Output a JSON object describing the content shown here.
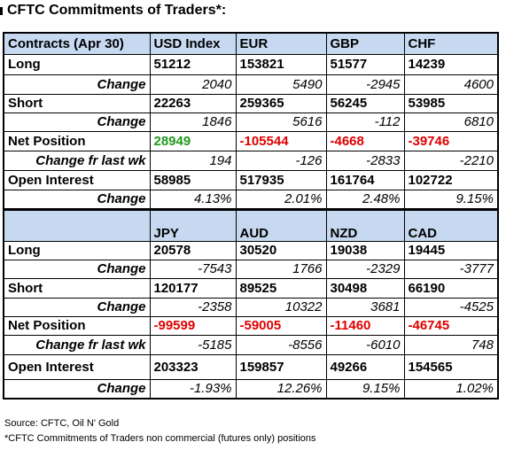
{
  "header": {
    "title": "CFTC Commitments of Traders*:"
  },
  "table": {
    "colors": {
      "header_fill": "#c6d9f0",
      "positive": "#1e9a1e",
      "negative": "#e00000"
    },
    "blocks": [
      {
        "header": [
          "Contracts (Apr 30)",
          "USD Index",
          "EUR",
          "GBP",
          "CHF"
        ],
        "rows": [
          {
            "label": "Long",
            "cells": [
              51212,
              153821,
              51577,
              14239
            ]
          },
          {
            "label": "Change",
            "cells": [
              2040,
              5490,
              -2945,
              4600
            ]
          },
          {
            "label": "Short",
            "cells": [
              22263,
              259365,
              56245,
              53985
            ]
          },
          {
            "label": "Change",
            "cells": [
              1846,
              5616,
              -112,
              6810
            ]
          },
          {
            "label": "Net Position",
            "cells": [
              28949,
              -105544,
              -4668,
              -39746
            ]
          },
          {
            "label": "Change fr last wk",
            "cells": [
              194,
              -126,
              -2833,
              -2210
            ]
          },
          {
            "label": "Open Interest",
            "cells": [
              58985,
              517935,
              161764,
              102722
            ]
          },
          {
            "label": "Change",
            "cells": [
              "4.13%",
              "2.01%",
              "2.48%",
              "9.15%"
            ]
          }
        ]
      },
      {
        "header": [
          null,
          "JPY",
          "AUD",
          "NZD",
          "CAD"
        ],
        "rows": [
          {
            "label": "Long",
            "cells": [
              20578,
              30520,
              19038,
              19445
            ]
          },
          {
            "label": "Change",
            "cells": [
              -7543,
              1766,
              -2329,
              -3777
            ]
          },
          {
            "label": "Short",
            "cells": [
              120177,
              89525,
              30498,
              66190
            ]
          },
          {
            "label": "Change",
            "cells": [
              -2358,
              10322,
              3681,
              -4525
            ]
          },
          {
            "label": "Net Position",
            "cells": [
              -99599,
              -59005,
              -11460,
              -46745
            ]
          },
          {
            "label": "Change fr last wk",
            "cells": [
              -5185,
              -8556,
              -6010,
              748
            ]
          },
          {
            "label": "Open Interest",
            "cells": [
              203323,
              159857,
              49266,
              154565
            ]
          },
          {
            "label": "Change",
            "cells": [
              "-1.93%",
              "12.26%",
              "9.15%",
              "1.02%"
            ]
          }
        ]
      }
    ]
  },
  "footer": {
    "source": "Source: CFTC, Oil N' Gold",
    "note": "*CFTC Commitments of Traders non commercial (futures only) positions"
  }
}
